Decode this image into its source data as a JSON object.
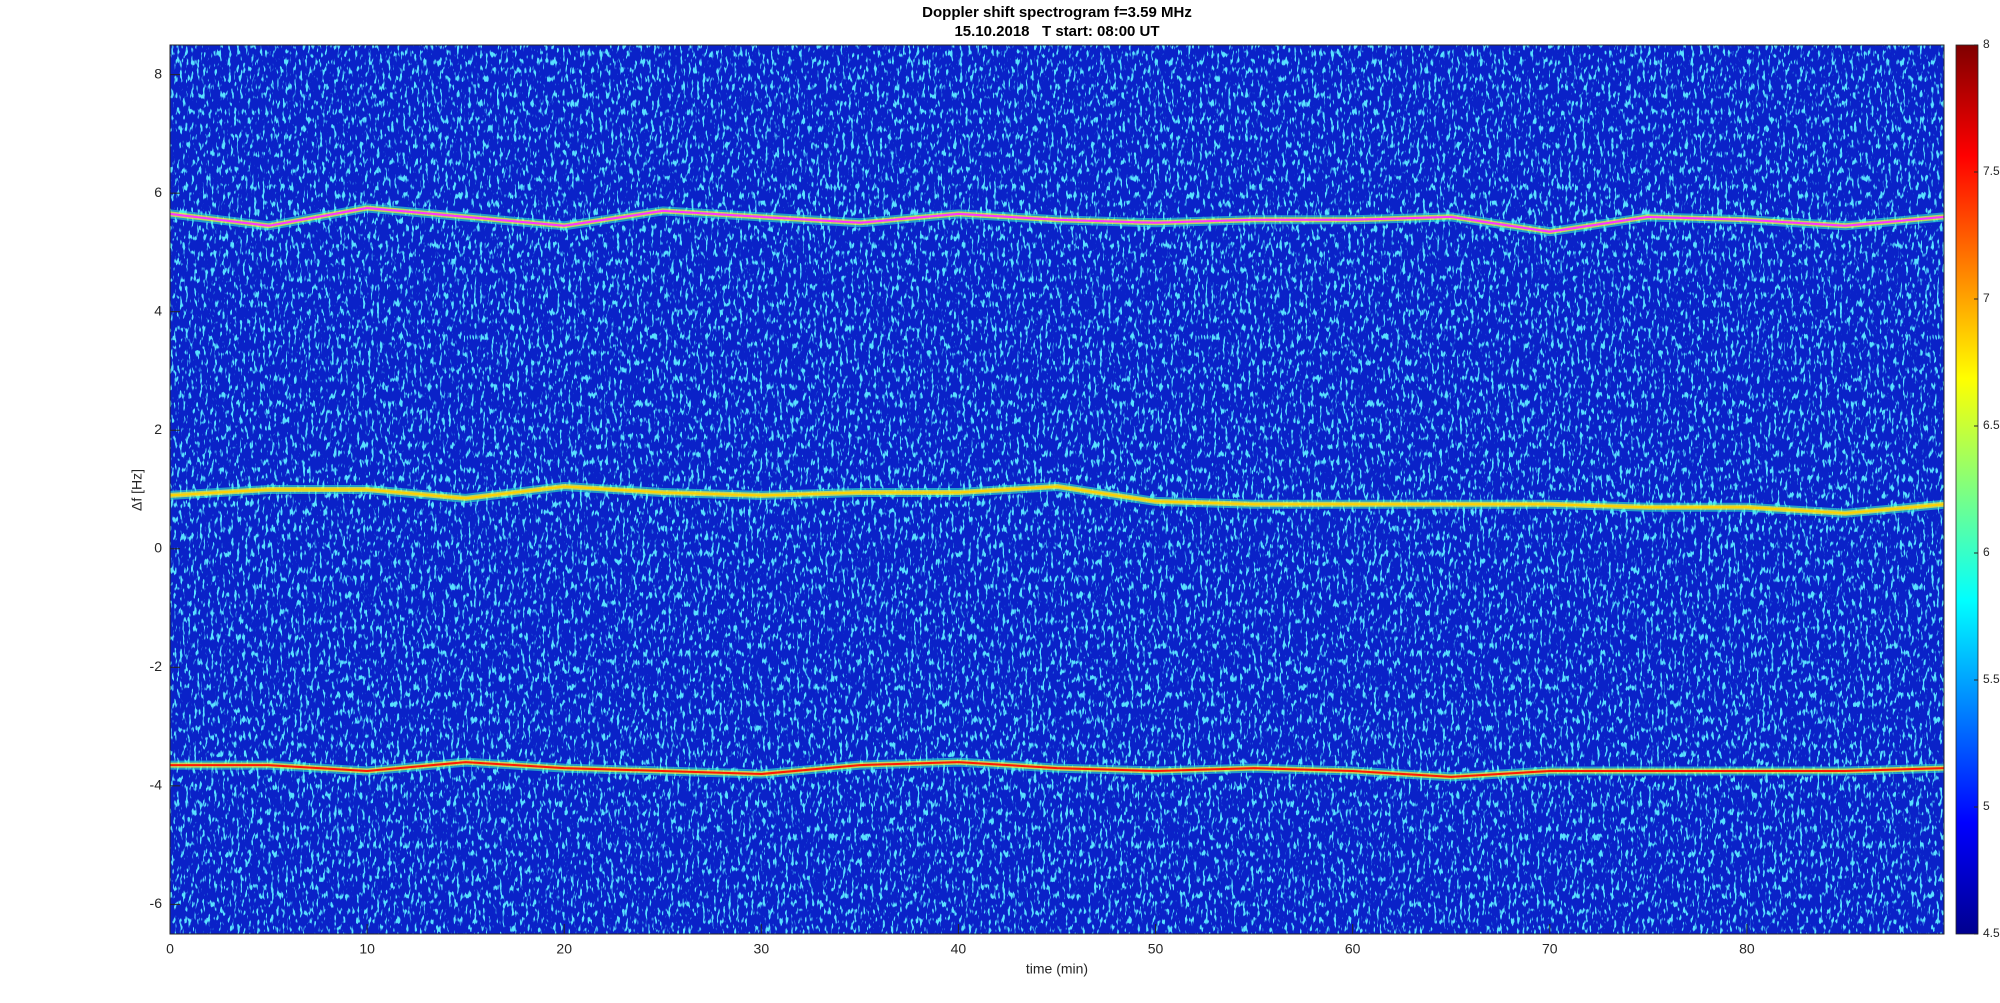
{
  "chart_data": {
    "type": "spectrogram",
    "title": "Doppler shift spectrogram f=3.59 MHz",
    "subtitle": "15.10.2018   T start: 08:00 UT",
    "xlabel": "time (min)",
    "ylabel": "Δf [Hz]",
    "xlim": [
      0,
      90
    ],
    "xticks": [
      0,
      10,
      20,
      30,
      40,
      50,
      60,
      70,
      80
    ],
    "ylim": [
      -6.5,
      8.5
    ],
    "yticks": [
      -6,
      -4,
      -2,
      0,
      2,
      4,
      6,
      8
    ],
    "colormap": "jet",
    "clim": [
      4.5,
      8
    ],
    "cticks": [
      4.5,
      5,
      5.5,
      6,
      6.5,
      7,
      7.5,
      8
    ],
    "x": [
      0,
      5,
      10,
      15,
      20,
      25,
      30,
      35,
      40,
      45,
      50,
      55,
      60,
      65,
      70,
      75,
      80,
      85,
      90
    ],
    "series": [
      {
        "color": "#ff33ff",
        "values": [
          5.65,
          5.45,
          5.75,
          5.6,
          5.45,
          5.7,
          5.6,
          5.5,
          5.65,
          5.55,
          5.5,
          5.55,
          5.55,
          5.6,
          5.35,
          5.6,
          5.55,
          5.45,
          5.6
        ]
      },
      {
        "color": "#ffd000",
        "values": [
          0.9,
          1.0,
          1.0,
          0.85,
          1.05,
          0.95,
          0.9,
          0.95,
          0.95,
          1.05,
          0.8,
          0.75,
          0.75,
          0.75,
          0.75,
          0.7,
          0.7,
          0.6,
          0.75
        ]
      },
      {
        "color": "#ff1a00",
        "values": [
          -3.65,
          -3.65,
          -3.75,
          -3.6,
          -3.7,
          -3.75,
          -3.8,
          -3.65,
          -3.6,
          -3.7,
          -3.75,
          -3.7,
          -3.75,
          -3.85,
          -3.75,
          -3.75,
          -3.75,
          -3.75,
          -3.7
        ]
      }
    ]
  }
}
